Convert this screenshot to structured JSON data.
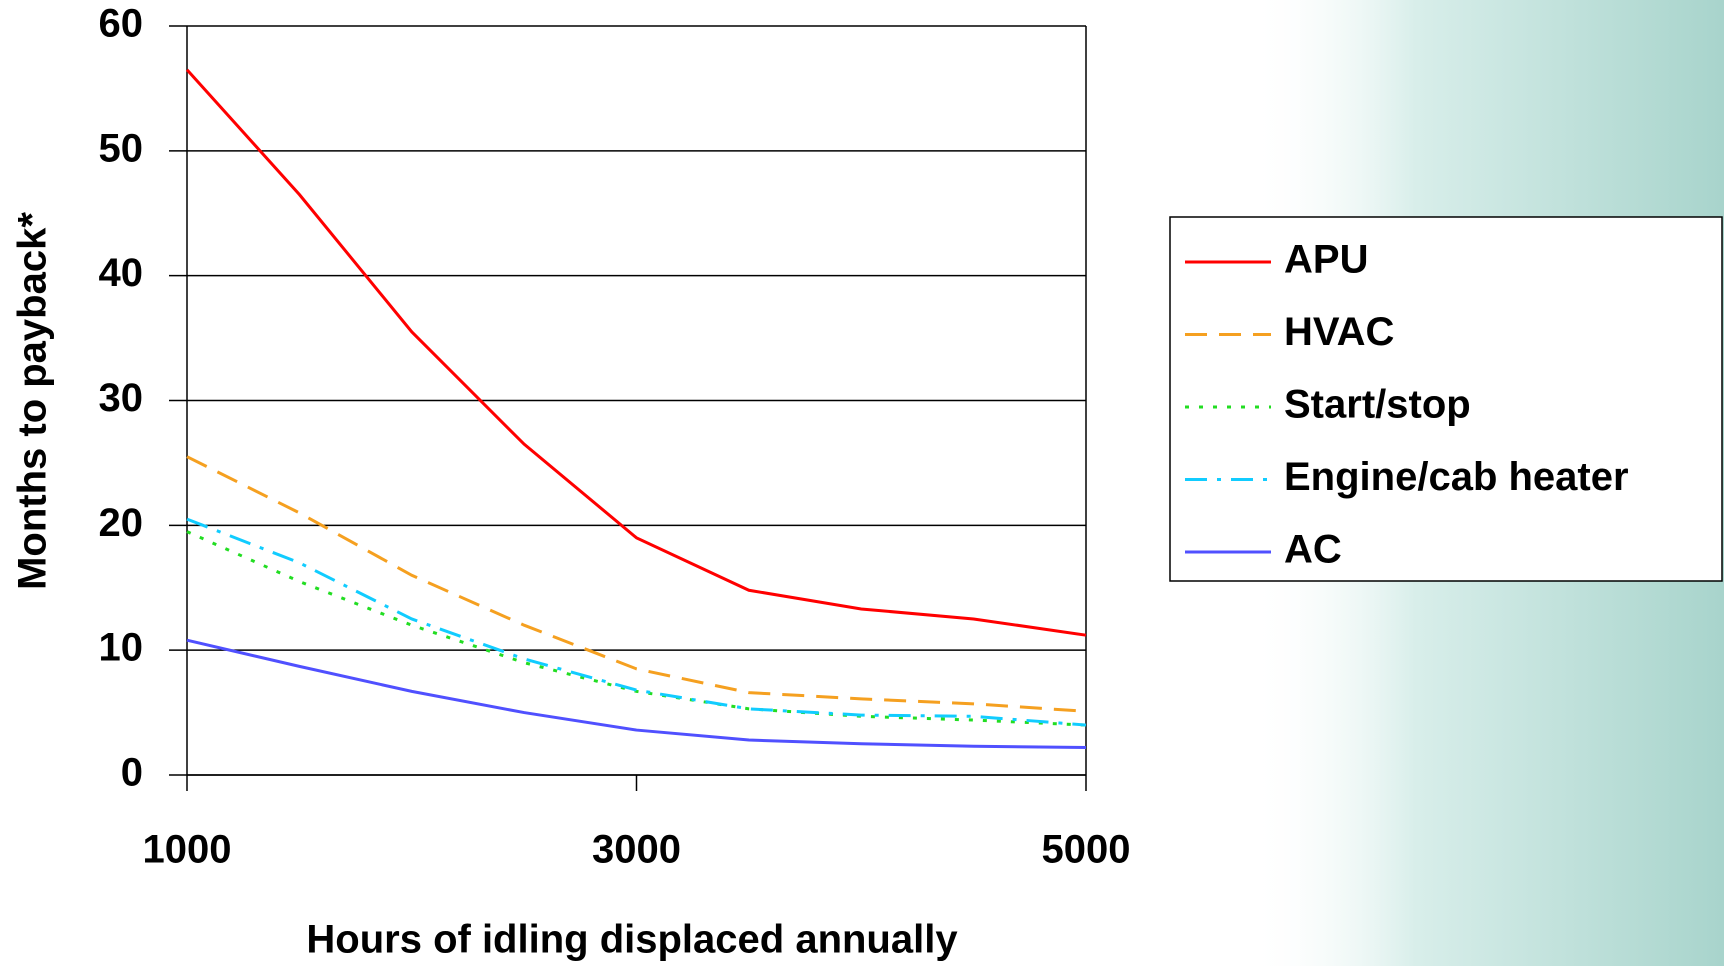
{
  "chart_data": {
    "type": "line",
    "x_label": "Hours of idling displaced annually",
    "y_label": "Months to payback*",
    "x": [
      1000,
      1500,
      2000,
      2500,
      3000,
      3500,
      4000,
      4500,
      5000
    ],
    "series": [
      {
        "name": "APU",
        "color": "#ff0000",
        "dash": "solid",
        "values": [
          56.5,
          46.5,
          35.5,
          26.5,
          19,
          14.8,
          13.3,
          12.5,
          11.2
        ]
      },
      {
        "name": "HVAC",
        "color": "#f5a020",
        "dash": "dashed",
        "values": [
          25.5,
          21,
          16,
          12,
          8.5,
          6.6,
          6.1,
          5.7,
          5.1
        ]
      },
      {
        "name": "Start/stop",
        "color": "#22dd22",
        "dash": "dotted",
        "values": [
          19.5,
          15.5,
          12,
          9,
          6.7,
          5.3,
          4.7,
          4.4,
          4.0
        ]
      },
      {
        "name": "Engine/cab heater",
        "color": "#11ccff",
        "dash": "dashdot",
        "values": [
          20.5,
          17,
          12.5,
          9.3,
          6.8,
          5.3,
          4.8,
          4.7,
          4.0
        ]
      },
      {
        "name": "AC",
        "color": "#5050ff",
        "dash": "solid",
        "values": [
          10.8,
          8.7,
          6.7,
          5.0,
          3.6,
          2.8,
          2.5,
          2.3,
          2.2
        ]
      }
    ],
    "xlim": [
      1000,
      5000
    ],
    "xticks": [
      1000,
      3000,
      5000
    ],
    "ylim": [
      0,
      60
    ],
    "yticks": [
      0,
      10,
      20,
      30,
      40,
      50,
      60
    ],
    "grid": true,
    "legend": "right"
  }
}
